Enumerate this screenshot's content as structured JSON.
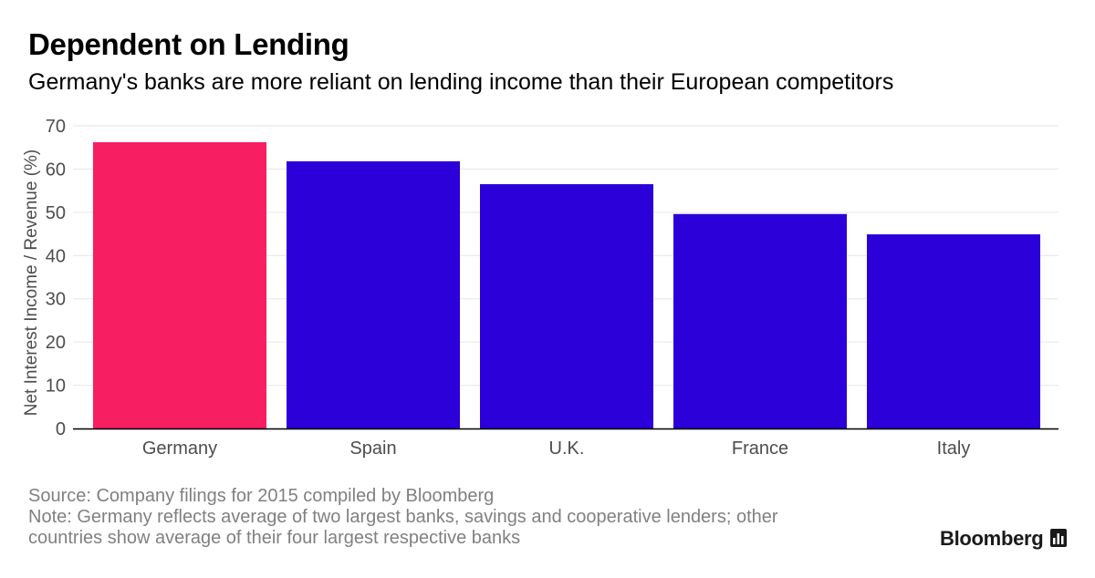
{
  "header": {
    "title": "Dependent on Lending",
    "subtitle": "Germany's banks are more reliant on lending income than their European competitors"
  },
  "footer": {
    "source": "Source: Company filings for 2015 compiled by Bloomberg",
    "note_line1": "Note: Germany reflects average of two largest banks, savings and cooperative lenders; other",
    "note_line2": "countries show average of their four largest respective banks",
    "brand": "Bloomberg",
    "brand_icon": "bar-chart-icon"
  },
  "colors": {
    "highlight": "#f81e62",
    "default": "#2b00d9",
    "grid": "#e6e6e6",
    "axis": "#000000",
    "tick_text": "#4d4d4d"
  },
  "chart_data": {
    "type": "bar",
    "title": "Dependent on Lending",
    "subtitle": "Germany's banks are more reliant on lending income than their European competitors",
    "xlabel": "",
    "ylabel": "Net Interest Income / Revenue (%)",
    "categories": [
      "Germany",
      "Spain",
      "U.K.",
      "France",
      "Italy"
    ],
    "values": [
      66.2,
      61.8,
      56.5,
      49.6,
      44.9
    ],
    "highlight": [
      true,
      false,
      false,
      false,
      false
    ],
    "ylim": [
      0,
      70
    ],
    "yticks": [
      0,
      10,
      20,
      30,
      40,
      50,
      60,
      70
    ],
    "ytick_labels": [
      "0",
      "10",
      "20",
      "30",
      "40",
      "50",
      "60",
      "70"
    ],
    "grid": true,
    "legend": "none"
  }
}
